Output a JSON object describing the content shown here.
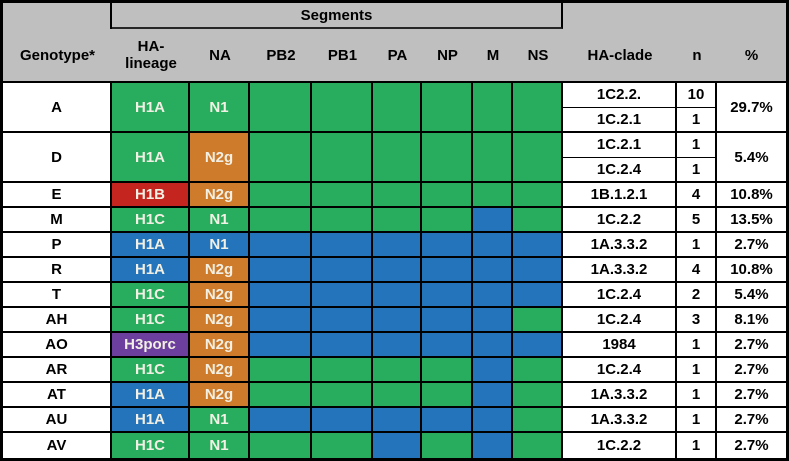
{
  "header": {
    "segments_group": "Segments",
    "genotype_col": "Genotype*",
    "ha_line1": "HA-",
    "ha_line2": "lineage",
    "na": "NA",
    "pb2": "PB2",
    "pb1": "PB1",
    "pa": "PA",
    "np": "NP",
    "m": "M",
    "ns": "NS",
    "clade": "HA-clade",
    "n": "n",
    "pct": "%"
  },
  "colors": {
    "green": "#27AD5D",
    "blue": "#2474BB",
    "orange": "#CE7B2C",
    "red": "#C4251E",
    "purple": "#6C3F9E",
    "header_bg": "#BFBFBF",
    "cell_text": "#F2F0E4"
  },
  "segment_columns": [
    "pb2",
    "pb1",
    "pa",
    "np",
    "m",
    "ns"
  ],
  "rows": [
    {
      "genotype": "A",
      "ha": {
        "text": "H1A",
        "color": "green"
      },
      "na": {
        "text": "N1",
        "color": "green"
      },
      "segments": [
        "green",
        "green",
        "green",
        "green",
        "green",
        "green"
      ],
      "clades": [
        {
          "clade": "1C2.2.",
          "n": "10"
        },
        {
          "clade": "1C.2.1",
          "n": "1"
        }
      ],
      "pct": "29.7%"
    },
    {
      "genotype": "D",
      "ha": {
        "text": "H1A",
        "color": "green"
      },
      "na": {
        "text": "N2g",
        "color": "orange"
      },
      "segments": [
        "green",
        "green",
        "green",
        "green",
        "green",
        "green"
      ],
      "clades": [
        {
          "clade": "1C.2.1",
          "n": "1"
        },
        {
          "clade": "1C.2.4",
          "n": "1"
        }
      ],
      "pct": "5.4%"
    },
    {
      "genotype": "E",
      "ha": {
        "text": "H1B",
        "color": "red"
      },
      "na": {
        "text": "N2g",
        "color": "orange"
      },
      "segments": [
        "green",
        "green",
        "green",
        "green",
        "green",
        "green"
      ],
      "clades": [
        {
          "clade": "1B.1.2.1",
          "n": "4"
        }
      ],
      "pct": "10.8%"
    },
    {
      "genotype": "M",
      "ha": {
        "text": "H1C",
        "color": "green"
      },
      "na": {
        "text": "N1",
        "color": "green"
      },
      "segments": [
        "green",
        "green",
        "green",
        "green",
        "blue",
        "green"
      ],
      "clades": [
        {
          "clade": "1C.2.2",
          "n": "5"
        }
      ],
      "pct": "13.5%"
    },
    {
      "genotype": "P",
      "ha": {
        "text": "H1A",
        "color": "blue"
      },
      "na": {
        "text": "N1",
        "color": "blue"
      },
      "segments": [
        "blue",
        "blue",
        "blue",
        "blue",
        "blue",
        "blue"
      ],
      "clades": [
        {
          "clade": "1A.3.3.2",
          "n": "1"
        }
      ],
      "pct": "2.7%"
    },
    {
      "genotype": "R",
      "ha": {
        "text": "H1A",
        "color": "blue"
      },
      "na": {
        "text": "N2g",
        "color": "orange"
      },
      "segments": [
        "blue",
        "blue",
        "blue",
        "blue",
        "blue",
        "blue"
      ],
      "clades": [
        {
          "clade": "1A.3.3.2",
          "n": "4"
        }
      ],
      "pct": "10.8%"
    },
    {
      "genotype": "T",
      "ha": {
        "text": "H1C",
        "color": "green"
      },
      "na": {
        "text": "N2g",
        "color": "orange"
      },
      "segments": [
        "blue",
        "blue",
        "blue",
        "blue",
        "blue",
        "blue"
      ],
      "clades": [
        {
          "clade": "1C.2.4",
          "n": "2"
        }
      ],
      "pct": "5.4%"
    },
    {
      "genotype": "AH",
      "ha": {
        "text": "H1C",
        "color": "green"
      },
      "na": {
        "text": "N2g",
        "color": "orange"
      },
      "segments": [
        "blue",
        "blue",
        "blue",
        "blue",
        "blue",
        "green"
      ],
      "clades": [
        {
          "clade": "1C.2.4",
          "n": "3"
        }
      ],
      "pct": "8.1%"
    },
    {
      "genotype": "AO",
      "ha": {
        "text": "H3porc",
        "color": "purple"
      },
      "na": {
        "text": "N2g",
        "color": "orange"
      },
      "segments": [
        "blue",
        "blue",
        "blue",
        "blue",
        "blue",
        "blue"
      ],
      "clades": [
        {
          "clade": "1984",
          "n": "1"
        }
      ],
      "pct": "2.7%"
    },
    {
      "genotype": "AR",
      "ha": {
        "text": "H1C",
        "color": "green"
      },
      "na": {
        "text": "N2g",
        "color": "orange"
      },
      "segments": [
        "green",
        "green",
        "green",
        "green",
        "blue",
        "green"
      ],
      "clades": [
        {
          "clade": "1C.2.4",
          "n": "1"
        }
      ],
      "pct": "2.7%"
    },
    {
      "genotype": "AT",
      "ha": {
        "text": "H1A",
        "color": "blue"
      },
      "na": {
        "text": "N2g",
        "color": "orange"
      },
      "segments": [
        "green",
        "green",
        "green",
        "green",
        "blue",
        "green"
      ],
      "clades": [
        {
          "clade": "1A.3.3.2",
          "n": "1"
        }
      ],
      "pct": "2.7%"
    },
    {
      "genotype": "AU",
      "ha": {
        "text": "H1A",
        "color": "blue"
      },
      "na": {
        "text": "N1",
        "color": "green"
      },
      "segments": [
        "blue",
        "blue",
        "blue",
        "blue",
        "blue",
        "green"
      ],
      "clades": [
        {
          "clade": "1A.3.3.2",
          "n": "1"
        }
      ],
      "pct": "2.7%"
    },
    {
      "genotype": "AV",
      "ha": {
        "text": "H1C",
        "color": "green"
      },
      "na": {
        "text": "N1",
        "color": "green"
      },
      "segments": [
        "green",
        "green",
        "blue",
        "green",
        "blue",
        "green"
      ],
      "clades": [
        {
          "clade": "1C.2.2",
          "n": "1"
        }
      ],
      "pct": "2.7%"
    }
  ]
}
